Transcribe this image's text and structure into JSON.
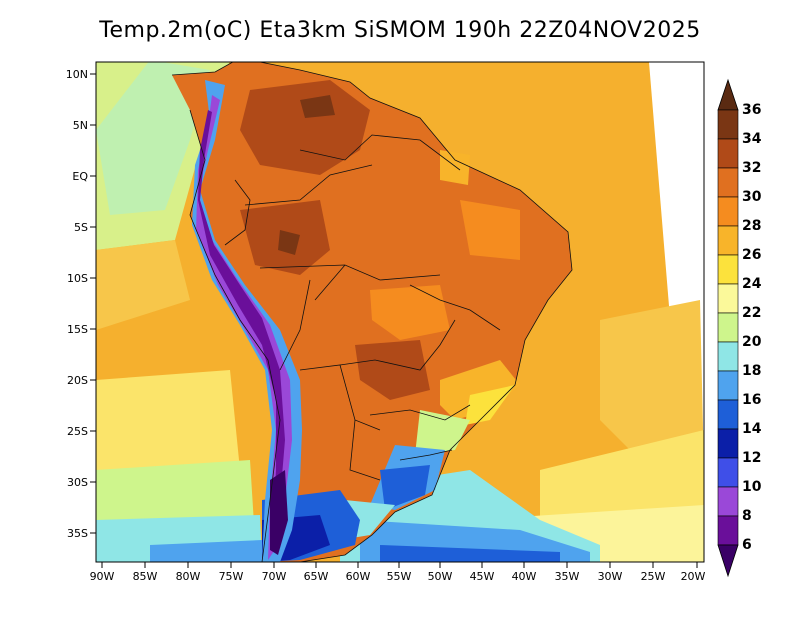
{
  "title": "Temp.2m(oC) Eta3km SiSMOM 190h 22Z04NOV2025",
  "map": {
    "lat_labels": [
      "10N",
      "5N",
      "EQ",
      "5S",
      "10S",
      "15S",
      "20S",
      "25S",
      "30S",
      "35S"
    ],
    "lon_labels": [
      "90W",
      "85W",
      "80W",
      "75W",
      "70W",
      "65W",
      "60W",
      "55W",
      "50W",
      "45W",
      "40W",
      "35W",
      "30W",
      "25W",
      "20W"
    ]
  },
  "colorbar": {
    "labels": [
      "36",
      "34",
      "32",
      "30",
      "28",
      "26",
      "24",
      "22",
      "20",
      "18",
      "16",
      "14",
      "12",
      "10",
      "8",
      "6"
    ],
    "colors": {
      "gt36": "#5a2a12",
      "34": "#7a3614",
      "32": "#b04a18",
      "30": "#e07020",
      "28": "#f58c1f",
      "26": "#f8b42a",
      "24": "#fce23c",
      "22": "#fbf99a",
      "20": "#cef58c",
      "18": "#8fe6e6",
      "16": "#4fa3ee",
      "14": "#1e5fd8",
      "12": "#0b1fa8",
      "10": "#3f4fe8",
      "8": "#9a48d8",
      "6": "#6a0f9a",
      "lt6": "#3a0066"
    }
  }
}
